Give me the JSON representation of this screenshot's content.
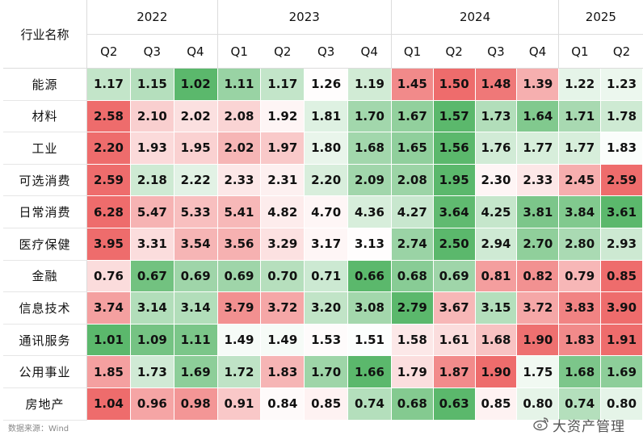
{
  "chart_data": {
    "type": "heatmap",
    "row_header_label": "行业名称",
    "years": [
      {
        "label": "2022",
        "quarters": 3
      },
      {
        "label": "2023",
        "quarters": 4
      },
      {
        "label": "2024",
        "quarters": 4
      },
      {
        "label": "2025",
        "quarters": 2
      }
    ],
    "columns": [
      "Q2",
      "Q3",
      "Q4",
      "Q1",
      "Q2",
      "Q3",
      "Q4",
      "Q1",
      "Q2",
      "Q3",
      "Q4",
      "Q1",
      "Q2"
    ],
    "rows": [
      {
        "name": "能源",
        "values": [
          "1.17",
          "1.15",
          "1.02",
          "1.11",
          "1.17",
          "1.26",
          "1.19",
          "1.45",
          "1.50",
          "1.48",
          "1.39",
          "1.22",
          "1.23"
        ]
      },
      {
        "name": "材料",
        "values": [
          "2.58",
          "2.10",
          "2.02",
          "2.08",
          "1.92",
          "1.81",
          "1.70",
          "1.67",
          "1.57",
          "1.73",
          "1.64",
          "1.71",
          "1.78"
        ]
      },
      {
        "name": "工业",
        "values": [
          "2.20",
          "1.93",
          "1.95",
          "2.02",
          "1.97",
          "1.80",
          "1.68",
          "1.65",
          "1.56",
          "1.76",
          "1.77",
          "1.77",
          "1.83"
        ]
      },
      {
        "name": "可选消费",
        "values": [
          "2.59",
          "2.18",
          "2.22",
          "2.33",
          "2.31",
          "2.20",
          "2.09",
          "2.08",
          "1.95",
          "2.30",
          "2.33",
          "2.45",
          "2.59"
        ]
      },
      {
        "name": "日常消费",
        "values": [
          "6.28",
          "5.47",
          "5.33",
          "5.41",
          "4.82",
          "4.70",
          "4.36",
          "4.27",
          "3.64",
          "4.25",
          "3.81",
          "3.84",
          "3.61"
        ]
      },
      {
        "name": "医疗保健",
        "values": [
          "3.95",
          "3.31",
          "3.54",
          "3.56",
          "3.29",
          "3.17",
          "3.13",
          "2.74",
          "2.50",
          "2.94",
          "2.70",
          "2.80",
          "2.93"
        ]
      },
      {
        "name": "金融",
        "values": [
          "0.76",
          "0.67",
          "0.69",
          "0.69",
          "0.70",
          "0.71",
          "0.66",
          "0.68",
          "0.69",
          "0.81",
          "0.82",
          "0.79",
          "0.85"
        ]
      },
      {
        "name": "信息技术",
        "values": [
          "3.74",
          "3.14",
          "3.14",
          "3.79",
          "3.72",
          "3.20",
          "3.08",
          "2.79",
          "3.67",
          "3.15",
          "3.72",
          "3.83",
          "3.90"
        ]
      },
      {
        "name": "通讯服务",
        "values": [
          "1.01",
          "1.09",
          "1.11",
          "1.49",
          "1.49",
          "1.53",
          "1.51",
          "1.58",
          "1.61",
          "1.68",
          "1.90",
          "1.83",
          "1.91"
        ]
      },
      {
        "name": "公用事业",
        "values": [
          "1.85",
          "1.73",
          "1.69",
          "1.72",
          "1.83",
          "1.70",
          "1.66",
          "1.79",
          "1.87",
          "1.90",
          "1.75",
          "1.68",
          "1.69"
        ]
      },
      {
        "name": "房地产",
        "values": [
          "1.04",
          "0.96",
          "0.98",
          "0.91",
          "0.84",
          "0.85",
          "0.74",
          "0.68",
          "0.63",
          "0.85",
          "0.80",
          "0.74",
          "0.80"
        ]
      }
    ],
    "color_scale": {
      "low": "#5bb86c",
      "mid": "#ffffff",
      "high": "#ee6c6c"
    }
  },
  "source_note": "数据来源：Wind",
  "watermark": "大资产管理",
  "background_watermark": "Wind"
}
